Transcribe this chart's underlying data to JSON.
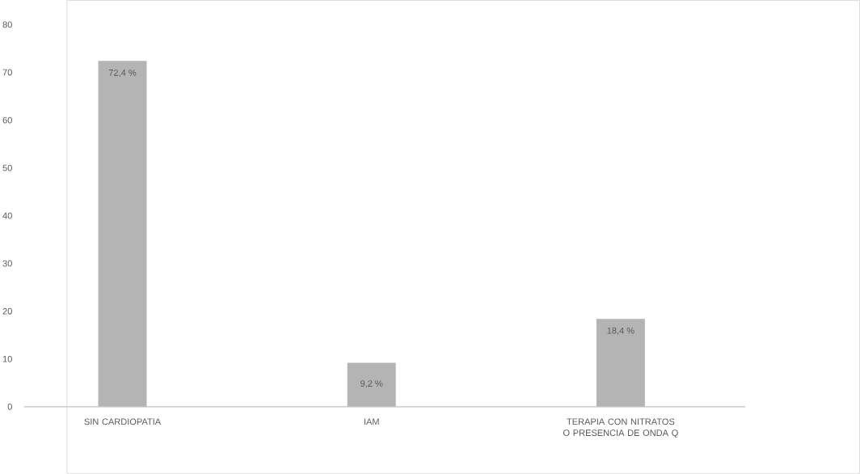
{
  "chart_data": {
    "type": "bar",
    "categories": [
      "SIN CARDIOPATIA",
      "IAM",
      "TERAPIA CON NITRATOS O PRESENCIA DE ONDA Q"
    ],
    "values": [
      72.4,
      9.2,
      18.4
    ],
    "value_labels": [
      "72,4 %",
      "9,2 %",
      "18,4 %"
    ],
    "color": "#b4b4b4",
    "ylim": [
      0,
      80
    ],
    "yticks": [
      0,
      10,
      20,
      30,
      40,
      50,
      60,
      70,
      80
    ]
  }
}
